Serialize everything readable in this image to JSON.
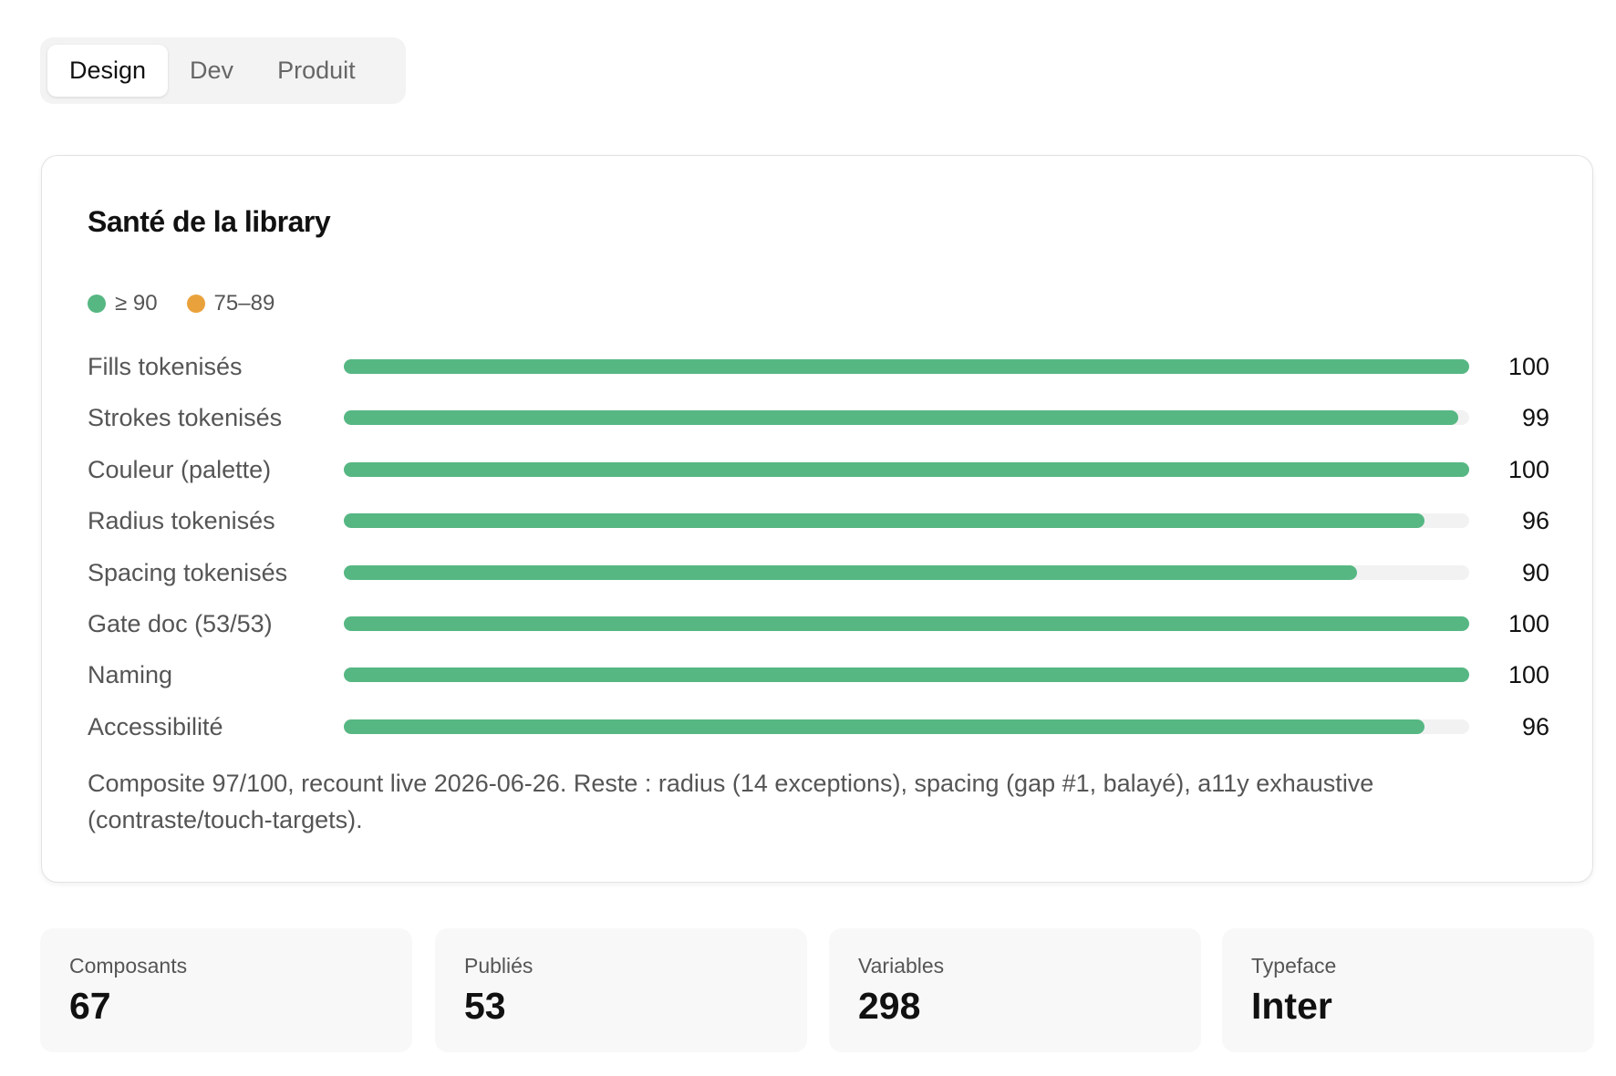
{
  "tabs": {
    "items": [
      "Design",
      "Dev",
      "Produit"
    ],
    "active": 0
  },
  "chart_data": {
    "type": "bar",
    "orientation": "horizontal",
    "title": "Santé de la library",
    "legend": [
      {
        "label": "≥ 90",
        "color": "#56b783"
      },
      {
        "label": "75–89",
        "color": "#e9a23b"
      }
    ],
    "categories": [
      "Fills tokenisés",
      "Strokes tokenisés",
      "Couleur (palette)",
      "Radius tokenisés",
      "Spacing tokenisés",
      "Gate doc (53/53)",
      "Naming",
      "Accessibilité"
    ],
    "values": [
      100,
      99,
      100,
      96,
      90,
      100,
      100,
      96
    ],
    "color": "#56b783",
    "track_color": "#f2f2f2",
    "xlim": [
      0,
      100
    ]
  },
  "note": "Composite 97/100, recount live 2026-06-26. Reste : radius (14 exceptions), spacing (gap #1, balayé), a11y exhaustive (contraste/touch-targets).",
  "stats": [
    {
      "label": "Composants",
      "value": 67
    },
    {
      "label": "Publiés",
      "value": 53
    },
    {
      "label": "Variables",
      "value": 298
    },
    {
      "label": "Typeface",
      "value": "Inter"
    }
  ]
}
